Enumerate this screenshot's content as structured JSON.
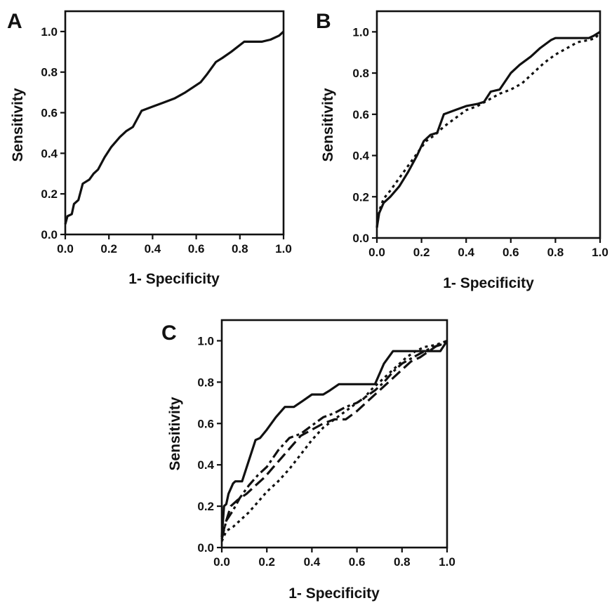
{
  "chart_data": [
    {
      "type": "line",
      "panel_label": "A",
      "title": "",
      "xlabel": "1- Specificity",
      "ylabel": "Sensitivity",
      "xlim": [
        0,
        1.0
      ],
      "ylim": [
        0,
        1.1
      ],
      "x_ticks": [
        "0.0",
        "0.2",
        "0.4",
        "0.6",
        "0.8",
        "1.0"
      ],
      "y_ticks": [
        "0.0",
        "0.2",
        "0.4",
        "0.6",
        "0.8",
        "1.0"
      ],
      "grid": false,
      "series": [
        {
          "style": "solid",
          "x": [
            0,
            0.01,
            0.03,
            0.04,
            0.06,
            0.08,
            0.11,
            0.13,
            0.15,
            0.18,
            0.21,
            0.25,
            0.28,
            0.31,
            0.35,
            0.4,
            0.45,
            0.5,
            0.55,
            0.62,
            0.65,
            0.69,
            0.72,
            0.76,
            0.82,
            0.86,
            0.9,
            0.94,
            0.98,
            1.0
          ],
          "y": [
            0.05,
            0.09,
            0.1,
            0.15,
            0.17,
            0.25,
            0.27,
            0.3,
            0.32,
            0.38,
            0.43,
            0.48,
            0.51,
            0.53,
            0.61,
            0.63,
            0.65,
            0.67,
            0.7,
            0.75,
            0.79,
            0.85,
            0.87,
            0.9,
            0.95,
            0.95,
            0.95,
            0.96,
            0.98,
            1.0
          ]
        }
      ]
    },
    {
      "type": "line",
      "panel_label": "B",
      "title": "",
      "xlabel": "1- Specificity",
      "ylabel": "Sensitivity",
      "xlim": [
        0,
        1.0
      ],
      "ylim": [
        0,
        1.1
      ],
      "x_ticks": [
        "0.0",
        "0.2",
        "0.4",
        "0.6",
        "0.8",
        "1.0"
      ],
      "y_ticks": [
        "0.0",
        "0.2",
        "0.4",
        "0.6",
        "0.8",
        "1.0"
      ],
      "grid": false,
      "series": [
        {
          "style": "solid",
          "x": [
            0,
            0.01,
            0.03,
            0.06,
            0.1,
            0.14,
            0.18,
            0.21,
            0.24,
            0.27,
            0.3,
            0.35,
            0.4,
            0.45,
            0.48,
            0.51,
            0.55,
            0.6,
            0.64,
            0.69,
            0.73,
            0.78,
            0.8,
            0.85,
            0.9,
            0.95,
            0.97,
            1.0
          ],
          "y": [
            0.05,
            0.12,
            0.17,
            0.2,
            0.25,
            0.32,
            0.4,
            0.47,
            0.5,
            0.51,
            0.6,
            0.62,
            0.64,
            0.65,
            0.66,
            0.71,
            0.72,
            0.8,
            0.84,
            0.88,
            0.92,
            0.96,
            0.97,
            0.97,
            0.97,
            0.97,
            0.98,
            1.0
          ]
        },
        {
          "style": "dotted",
          "x": [
            0,
            0.01,
            0.03,
            0.06,
            0.1,
            0.14,
            0.18,
            0.22,
            0.26,
            0.3,
            0.35,
            0.4,
            0.45,
            0.5,
            0.55,
            0.6,
            0.65,
            0.7,
            0.75,
            0.8,
            0.85,
            0.9,
            0.95,
            0.98,
            1.0
          ],
          "y": [
            0.05,
            0.13,
            0.19,
            0.23,
            0.29,
            0.35,
            0.41,
            0.47,
            0.5,
            0.54,
            0.58,
            0.62,
            0.64,
            0.67,
            0.7,
            0.72,
            0.75,
            0.8,
            0.85,
            0.89,
            0.92,
            0.95,
            0.96,
            0.97,
            1.0
          ]
        }
      ]
    },
    {
      "type": "line",
      "panel_label": "C",
      "title": "",
      "xlabel": "1- Specificity",
      "ylabel": "Sensitivity",
      "xlim": [
        0,
        1.0
      ],
      "ylim": [
        0,
        1.1
      ],
      "x_ticks": [
        "0.0",
        "0.2",
        "0.4",
        "0.6",
        "0.8",
        "1.0"
      ],
      "y_ticks": [
        "0.0",
        "0.2",
        "0.4",
        "0.6",
        "0.8",
        "1.0"
      ],
      "grid": false,
      "series": [
        {
          "style": "solid",
          "x": [
            0,
            0.01,
            0.02,
            0.03,
            0.05,
            0.06,
            0.09,
            0.12,
            0.15,
            0.17,
            0.2,
            0.24,
            0.28,
            0.32,
            0.36,
            0.4,
            0.45,
            0.48,
            0.52,
            0.56,
            0.6,
            0.64,
            0.68,
            0.72,
            0.76,
            0.8,
            0.85,
            0.9,
            0.95,
            0.97,
            1.0
          ],
          "y": [
            0.05,
            0.2,
            0.21,
            0.26,
            0.31,
            0.32,
            0.32,
            0.42,
            0.52,
            0.53,
            0.57,
            0.63,
            0.68,
            0.68,
            0.71,
            0.74,
            0.74,
            0.76,
            0.79,
            0.79,
            0.79,
            0.79,
            0.79,
            0.89,
            0.95,
            0.95,
            0.95,
            0.95,
            0.95,
            0.95,
            1.0
          ]
        },
        {
          "style": "dotted",
          "x": [
            0,
            0.02,
            0.05,
            0.08,
            0.12,
            0.16,
            0.2,
            0.25,
            0.3,
            0.35,
            0.4,
            0.45,
            0.5,
            0.55,
            0.6,
            0.63,
            0.66,
            0.7,
            0.74,
            0.78,
            0.82,
            0.86,
            0.9,
            0.95,
            1.0
          ],
          "y": [
            0.03,
            0.08,
            0.1,
            0.13,
            0.17,
            0.22,
            0.27,
            0.32,
            0.38,
            0.45,
            0.52,
            0.58,
            0.62,
            0.66,
            0.7,
            0.72,
            0.76,
            0.8,
            0.84,
            0.88,
            0.92,
            0.95,
            0.97,
            0.98,
            1.0
          ]
        },
        {
          "style": "dash-dot",
          "x": [
            0,
            0.02,
            0.05,
            0.08,
            0.12,
            0.16,
            0.2,
            0.25,
            0.3,
            0.35,
            0.4,
            0.45,
            0.5,
            0.55,
            0.6,
            0.64,
            0.68,
            0.72,
            0.76,
            0.8,
            0.85,
            0.9,
            0.94,
            0.97,
            1.0
          ],
          "y": [
            0.04,
            0.13,
            0.18,
            0.24,
            0.3,
            0.35,
            0.39,
            0.47,
            0.53,
            0.55,
            0.59,
            0.63,
            0.65,
            0.68,
            0.7,
            0.73,
            0.76,
            0.8,
            0.85,
            0.89,
            0.92,
            0.95,
            0.97,
            0.98,
            1.0
          ]
        },
        {
          "style": "dashed",
          "x": [
            0,
            0.02,
            0.04,
            0.07,
            0.11,
            0.15,
            0.19,
            0.23,
            0.27,
            0.31,
            0.35,
            0.4,
            0.45,
            0.5,
            0.55,
            0.6,
            0.64,
            0.68,
            0.72,
            0.76,
            0.8,
            0.84,
            0.88,
            0.92,
            0.96,
            1.0
          ],
          "y": [
            0.05,
            0.13,
            0.2,
            0.23,
            0.26,
            0.3,
            0.34,
            0.39,
            0.44,
            0.49,
            0.54,
            0.57,
            0.6,
            0.62,
            0.62,
            0.66,
            0.7,
            0.74,
            0.78,
            0.82,
            0.86,
            0.9,
            0.92,
            0.95,
            0.98,
            1.0
          ]
        }
      ]
    }
  ]
}
